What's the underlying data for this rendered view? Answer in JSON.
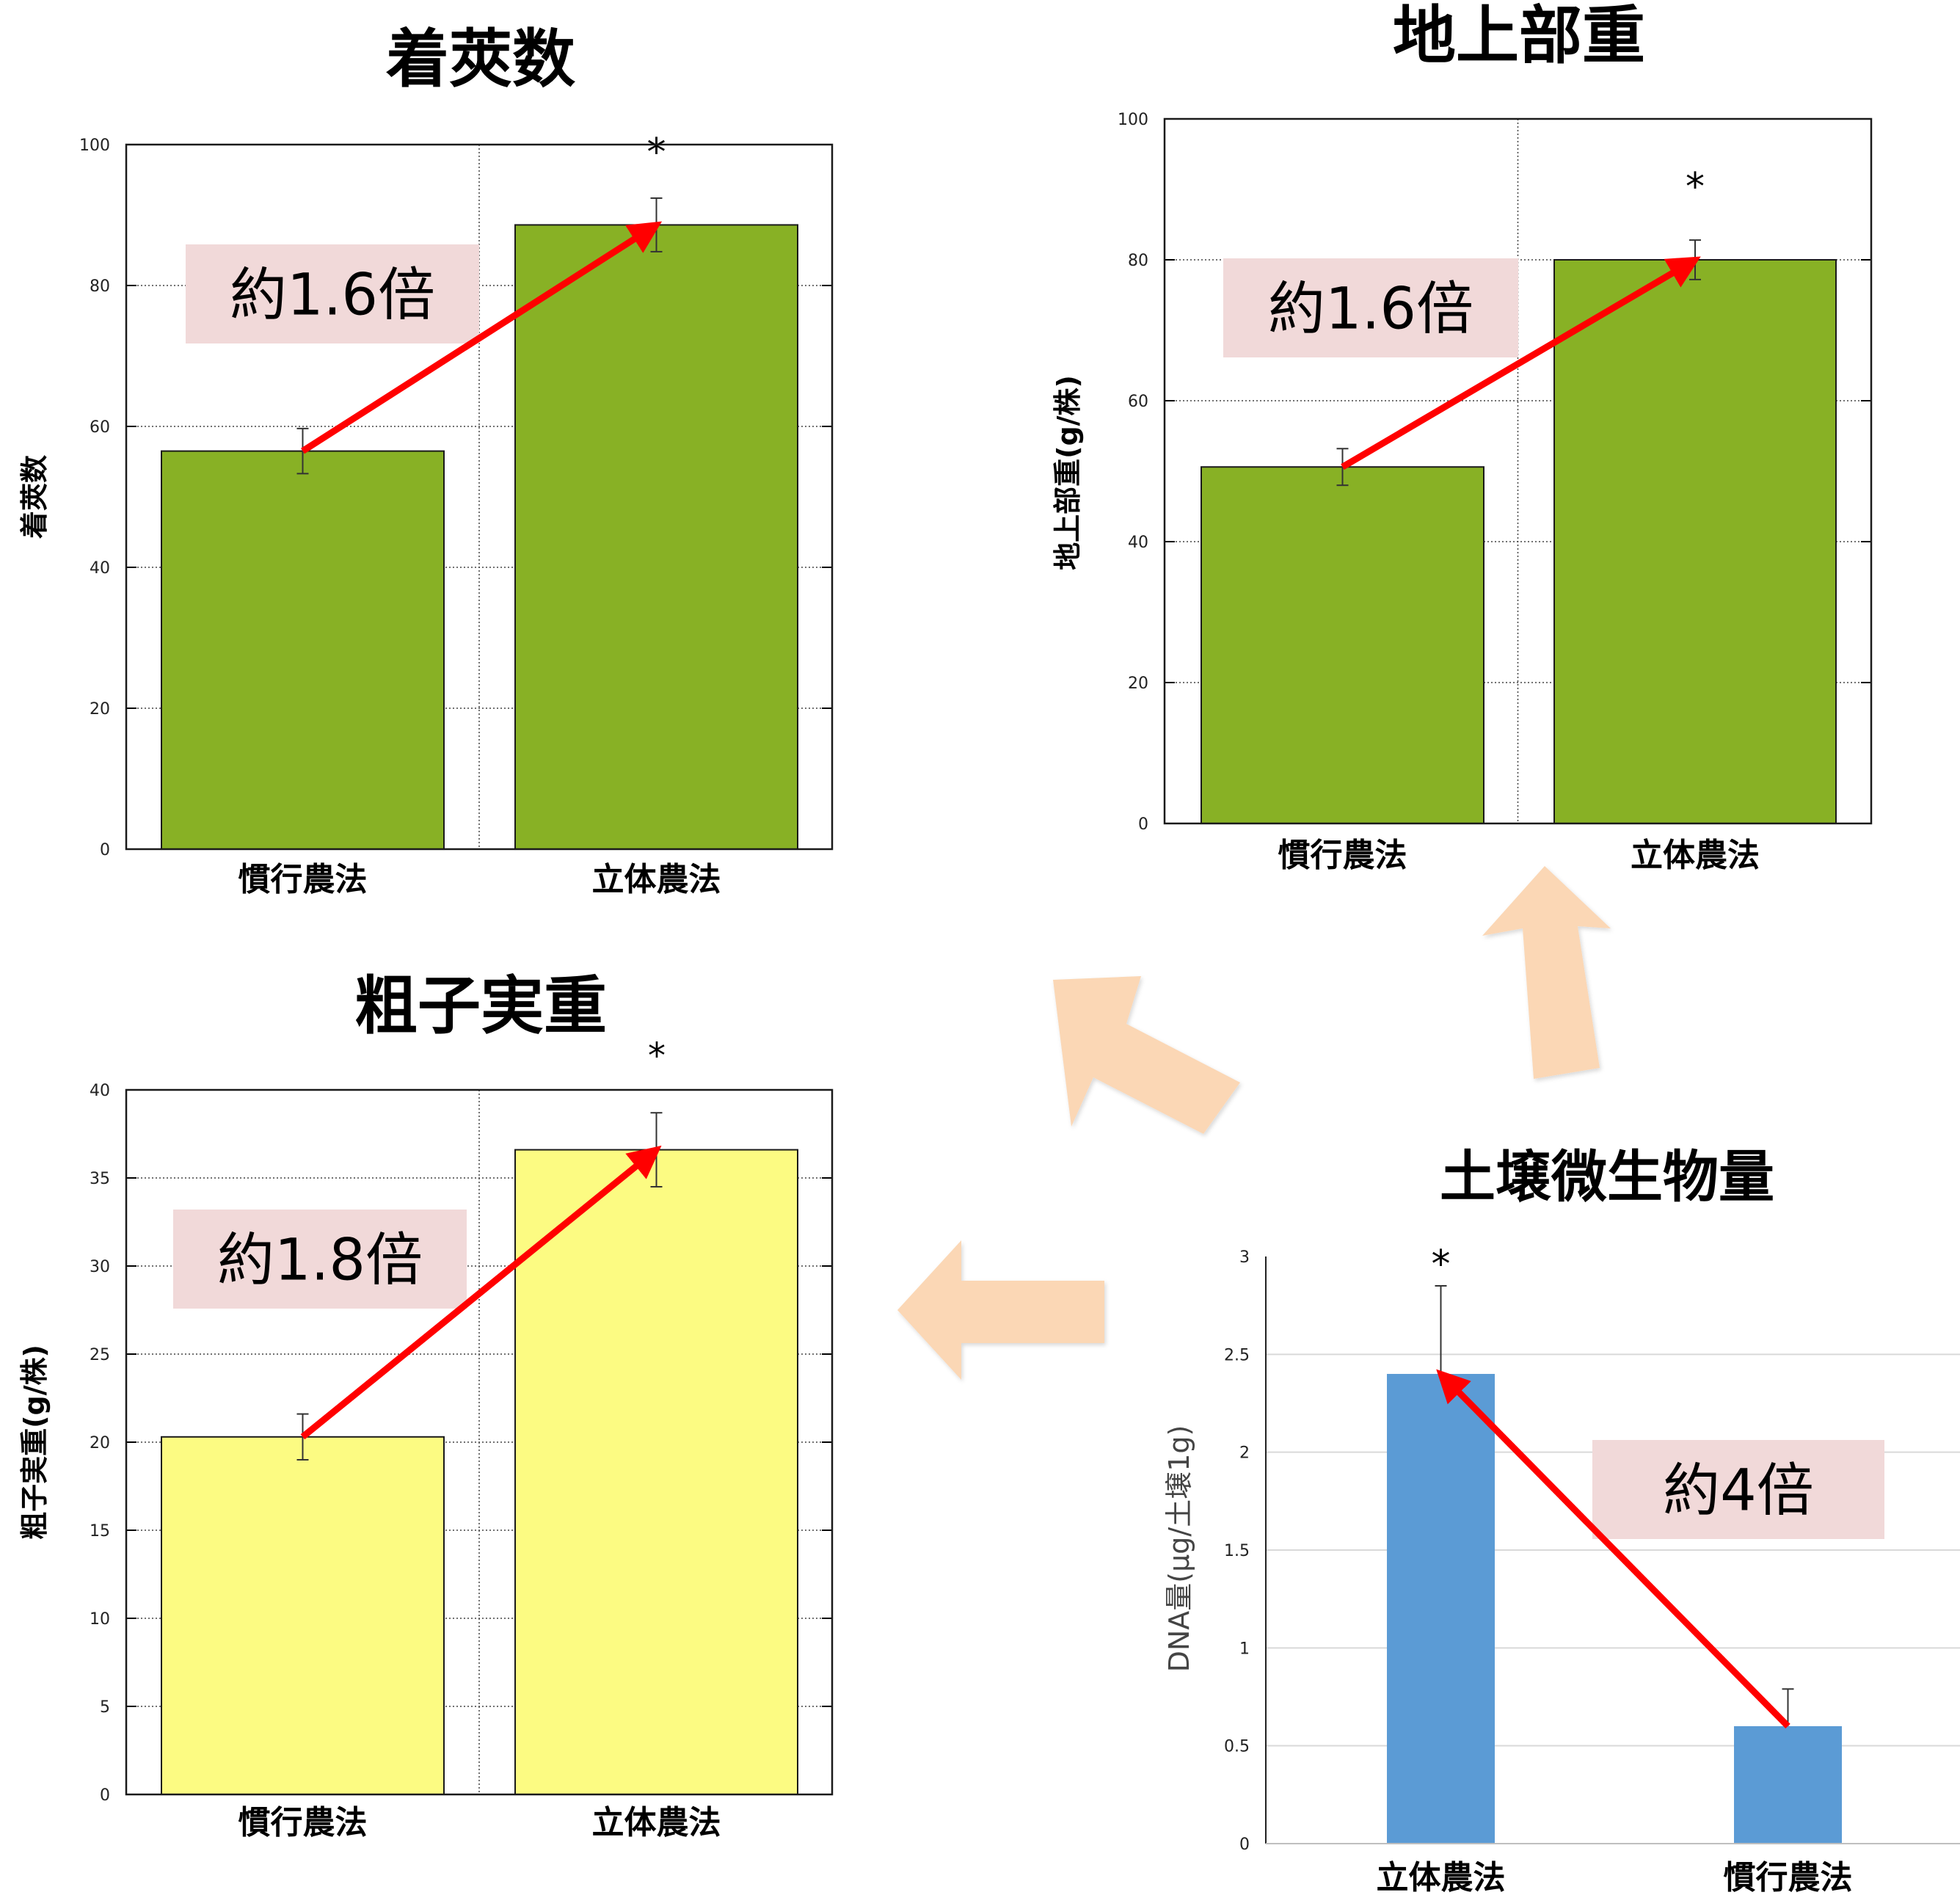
{
  "colors": {
    "green_bar": "#88b125",
    "yellow_bar": "#fcfb82",
    "blue_bar": "#5b9bd5",
    "arrow_red": "#ff0000",
    "ratio_box": "#f1d9d9",
    "flow_arrow": "#fbd7b5"
  },
  "chart_data": [
    {
      "id": "pods",
      "type": "bar",
      "title": "着莢数",
      "ylabel": "着莢数",
      "xlabel": "",
      "categories": [
        "慣行農法",
        "立体農法"
      ],
      "values": [
        56.5,
        88.6
      ],
      "errors": [
        3.2,
        3.8
      ],
      "ylim": [
        0,
        100
      ],
      "yticks": [
        "0",
        "20",
        "40",
        "60",
        "80",
        "100"
      ],
      "grid": "dotted",
      "significance": [
        "",
        "*"
      ],
      "ratio_label": "約1.6倍"
    },
    {
      "id": "shoot",
      "type": "bar",
      "title": "地上部重",
      "ylabel": "地上部重(g/株)",
      "xlabel": "",
      "categories": [
        "慣行農法",
        "立体農法"
      ],
      "values": [
        50.6,
        80.0
      ],
      "errors": [
        2.6,
        2.8
      ],
      "ylim": [
        0,
        100
      ],
      "yticks": [
        "0",
        "20",
        "40",
        "60",
        "80",
        "100"
      ],
      "grid": "dotted",
      "significance": [
        "",
        "*"
      ],
      "ratio_label": "約1.6倍"
    },
    {
      "id": "seed",
      "type": "bar",
      "title": "粗子実重",
      "title_mark": "*",
      "ylabel": "粗子実重(g/株)",
      "xlabel": "",
      "categories": [
        "慣行農法",
        "立体農法"
      ],
      "values": [
        20.3,
        36.6
      ],
      "errors": [
        1.3,
        2.1
      ],
      "ylim": [
        0,
        40
      ],
      "yticks": [
        "0",
        "5",
        "10",
        "15",
        "20",
        "25",
        "30",
        "35",
        "40"
      ],
      "grid": "dotted",
      "significance": [
        "",
        ""
      ],
      "ratio_label": "約1.8倍"
    },
    {
      "id": "microbe",
      "type": "bar",
      "title": "土壌微生物量",
      "ylabel": "DNA量(μg/土壌1g)",
      "xlabel": "",
      "categories": [
        "立体農法",
        "慣行農法"
      ],
      "values": [
        2.4,
        0.6
      ],
      "errors": [
        0.45,
        0.19
      ],
      "ylim": [
        0,
        3
      ],
      "yticks": [
        "0",
        "0.5",
        "1",
        "1.5",
        "2",
        "2.5",
        "3"
      ],
      "grid": "solid-light",
      "significance": [
        "*",
        ""
      ],
      "ratio_label": "約4倍"
    }
  ]
}
